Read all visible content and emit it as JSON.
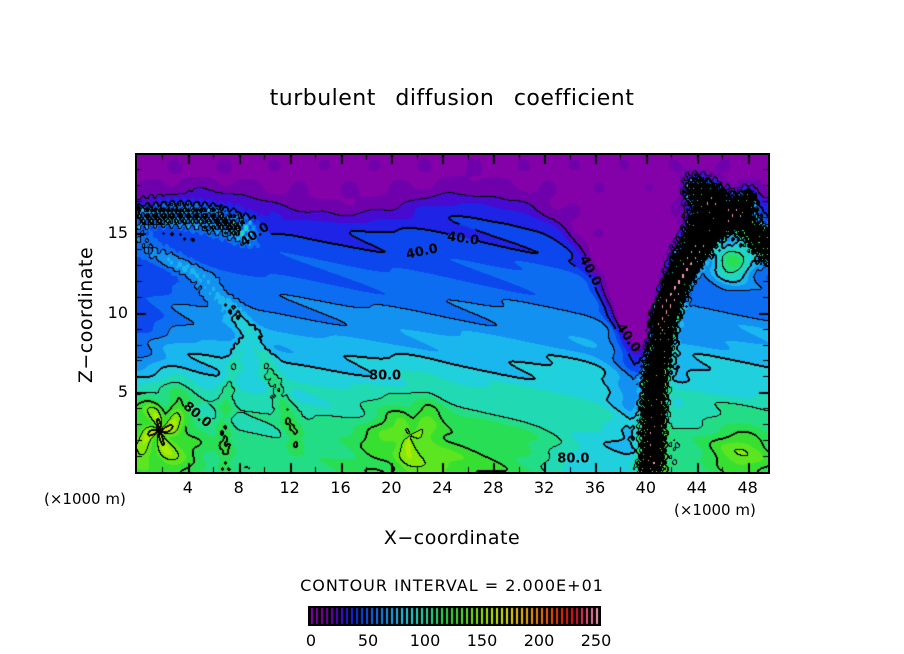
{
  "texts": {
    "title": "turbulent diffusion coefficient",
    "x_axis_label": "X−coordinate",
    "y_axis_label": "Z−coordinate",
    "unit_left": "(×1000 m)",
    "unit_right": "(×1000 m)",
    "contour_note": "CONTOUR INTERVAL = 2.000E+01"
  },
  "chart_data": {
    "type": "filled_contour",
    "title": "turbulent diffusion coefficient",
    "xlabel": "X−coordinate",
    "ylabel": "Z−coordinate",
    "axis_units": "(×1000 m)",
    "x_range": [
      0,
      49.6
    ],
    "z_range": [
      0,
      19.9
    ],
    "x_tick_labels": [
      4,
      8,
      12,
      16,
      20,
      24,
      28,
      32,
      36,
      40,
      44,
      48
    ],
    "x_tick_minor_step": 2,
    "z_tick_labels": [
      5,
      10,
      15
    ],
    "z_tick_minor_step": 1,
    "contour_interval": 20,
    "bold_contour_every": 40,
    "labeled_contour_values": [
      40.0,
      80.0
    ],
    "colorbar": {
      "min": 0,
      "max": 250,
      "ticks": [
        0,
        50,
        100,
        150,
        200,
        250
      ],
      "style": "striped-rainbow-on-black",
      "n_stripes": 58
    },
    "palette_stops": [
      [
        0,
        "#8C00AE"
      ],
      [
        12,
        "#7A00A0"
      ],
      [
        22,
        "#5404C8"
      ],
      [
        32,
        "#2818E4"
      ],
      [
        42,
        "#0A3CEC"
      ],
      [
        52,
        "#0C62F0"
      ],
      [
        62,
        "#1086F0"
      ],
      [
        72,
        "#18ACF0"
      ],
      [
        82,
        "#20CCE8"
      ],
      [
        92,
        "#20D8C0"
      ],
      [
        102,
        "#22DC96"
      ],
      [
        112,
        "#26DE62"
      ],
      [
        122,
        "#2CDE34"
      ],
      [
        132,
        "#50E428"
      ],
      [
        142,
        "#78E810"
      ],
      [
        152,
        "#9CEC00"
      ],
      [
        162,
        "#C4EC00"
      ],
      [
        172,
        "#E4E000"
      ],
      [
        182,
        "#F0C000"
      ],
      [
        192,
        "#F09C00"
      ],
      [
        202,
        "#F07400"
      ],
      [
        212,
        "#EC4A00"
      ],
      [
        222,
        "#E62000"
      ],
      [
        232,
        "#E01030"
      ],
      [
        242,
        "#EC5880"
      ],
      [
        250,
        "#F498B0"
      ]
    ],
    "contour_labels": [
      {
        "text": "40.0",
        "x": 9.3,
        "z": 14.9,
        "rot": -35
      },
      {
        "text": "40.0",
        "x": 22.4,
        "z": 13.8,
        "rot": -12
      },
      {
        "text": "40.0",
        "x": 25.6,
        "z": 14.6,
        "rot": 8
      },
      {
        "text": "40.0",
        "x": 35.6,
        "z": 12.6,
        "rot": 62
      },
      {
        "text": "40.0",
        "x": 38.6,
        "z": 8.4,
        "rot": 55
      },
      {
        "text": "80.0",
        "x": 4.7,
        "z": 3.6,
        "rot": 40
      },
      {
        "text": "80.0",
        "x": 19.5,
        "z": 6.0,
        "rot": 0
      },
      {
        "text": "80.0",
        "x": 34.3,
        "z": 0.8,
        "rot": 0
      }
    ],
    "field_model": {
      "base": {
        "floor": 7,
        "a0": 28,
        "a1": 70,
        "zscale": 10
      },
      "inversion": {
        "h0": 16.6,
        "wave_amp": 0.7,
        "wave_k": 0.3,
        "dip_x": 40.0,
        "dip_depth": 8.5,
        "dip_w": 4.5,
        "sharp": 0.55
      },
      "streaks": [
        {
          "amp": 3.2,
          "kx": 0.5,
          "kz": 2.4
        },
        {
          "amp": 2.2,
          "kx": 1.1,
          "kz": 4.7
        }
      ],
      "noise_top": {
        "amp": 4,
        "kx": 1.6,
        "kz": 2.2
      },
      "features": [
        {
          "type": "vortex",
          "x": 1.8,
          "z": 2.6,
          "r": 2.7,
          "amp": 50,
          "arms": 4,
          "twist": 3.5
        },
        {
          "type": "vortex",
          "x": 21.5,
          "z": 2.3,
          "r": 3.1,
          "amp": 26,
          "arms": 3,
          "twist": 3.0
        },
        {
          "type": "blob",
          "x": 25.0,
          "z": 1.2,
          "rx": 8.0,
          "rz": 2.4,
          "amp": 18
        },
        {
          "type": "blob",
          "x": 35.5,
          "z": 0.8,
          "rx": 3.5,
          "rz": 1.8,
          "amp": -26
        },
        {
          "type": "blob",
          "x": 0.0,
          "z": 8.5,
          "rx": 2.4,
          "rz": 3.6,
          "amp": -20
        },
        {
          "type": "blob",
          "x": 39.5,
          "z": 6.0,
          "rx": 2.2,
          "rz": 6.0,
          "amp": -30
        },
        {
          "type": "blob",
          "x": 47.5,
          "z": 1.2,
          "rx": 2.6,
          "rz": 2.0,
          "amp": 32
        },
        {
          "type": "blob",
          "x": 46.8,
          "z": 13.2,
          "rx": 1.6,
          "rz": 1.2,
          "amp": 72
        },
        {
          "type": "filament",
          "x0": 40.5,
          "z0": 0.5,
          "x1": 45.0,
          "z1": 16.8,
          "curve": 1.4,
          "width": 0.85,
          "amp": 120,
          "noise": 0.9
        },
        {
          "type": "filament",
          "x0": 48.0,
          "z0": 17.0,
          "x1": 41.0,
          "z1": 9.5,
          "curve": -0.6,
          "width": 0.6,
          "amp": 105,
          "noise": 0.9
        },
        {
          "type": "filament",
          "x0": 44.0,
          "z0": 17.6,
          "x1": 49.4,
          "z1": 14.2,
          "curve": 0.4,
          "width": 0.9,
          "amp": 85,
          "noise": 0.85
        },
        {
          "type": "filament",
          "x0": 0.4,
          "z0": 16.0,
          "x1": 8.5,
          "z1": 15.2,
          "curve": 0.5,
          "width": 0.8,
          "amp": 38,
          "noise": 0.85
        },
        {
          "type": "filament",
          "x0": 0.2,
          "z0": 14.5,
          "x1": 12.5,
          "z1": 2.0,
          "curve": 2.2,
          "width": 0.7,
          "amp": 20,
          "noise": 0.25
        },
        {
          "type": "filament",
          "x0": 7.0,
          "z0": 0.3,
          "x1": 8.2,
          "z1": 8.0,
          "curve": 0.6,
          "width": 0.6,
          "amp": 16,
          "noise": 0.3
        }
      ]
    }
  }
}
